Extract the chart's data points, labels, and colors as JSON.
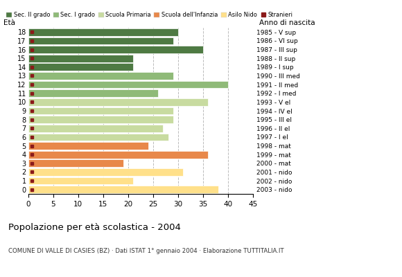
{
  "title": "Popolazione per età scolastica - 2004",
  "subtitle": "COMUNE DI VALLE DI CASIES (BZ) · Dati ISTAT 1° gennaio 2004 · Elaborazione TUTTITALIA.IT",
  "label_eta": "Età",
  "label_anno": "Anno di nascita",
  "ages": [
    0,
    1,
    2,
    3,
    4,
    5,
    6,
    7,
    8,
    9,
    10,
    11,
    12,
    13,
    14,
    15,
    16,
    17,
    18
  ],
  "year_labels": [
    "2003 - nido",
    "2002 - nido",
    "2001 - nido",
    "2000 - mat",
    "1999 - mat",
    "1998 - mat",
    "1997 - I el",
    "1996 - II el",
    "1995 - III el",
    "1994 - IV el",
    "1993 - V el",
    "1992 - I med",
    "1991 - II med",
    "1990 - III med",
    "1989 - I sup",
    "1988 - II sup",
    "1987 - III sup",
    "1986 - VI sup",
    "1985 - V sup"
  ],
  "bar_values": [
    38,
    21,
    31,
    19,
    36,
    24,
    28,
    27,
    29,
    29,
    36,
    26,
    40,
    29,
    21,
    21,
    35,
    29,
    30
  ],
  "foreigners": [
    1,
    1,
    1,
    2,
    1,
    2,
    1,
    2,
    1,
    1,
    1,
    2,
    2,
    1,
    1,
    1,
    1,
    1,
    1
  ],
  "bar_colors": [
    "#FFE08A",
    "#FFE08A",
    "#FFE08A",
    "#E8884A",
    "#E8884A",
    "#E8884A",
    "#C8DBA0",
    "#C8DBA0",
    "#C8DBA0",
    "#C8DBA0",
    "#C8DBA0",
    "#8FBA78",
    "#8FBA78",
    "#8FBA78",
    "#4E7A43",
    "#4E7A43",
    "#4E7A43",
    "#4E7A43",
    "#4E7A43"
  ],
  "legend_labels": [
    "Sec. II grado",
    "Sec. I grado",
    "Scuola Primaria",
    "Scuola dell'Infanzia",
    "Asilo Nido",
    "Stranieri"
  ],
  "legend_colors": [
    "#4E7A43",
    "#8FBA78",
    "#C8DBA0",
    "#E8884A",
    "#FFE08A",
    "#8B1A1A"
  ],
  "xlim": [
    0,
    45
  ],
  "xticks": [
    0,
    5,
    10,
    15,
    20,
    25,
    30,
    35,
    40,
    45
  ],
  "bg_color": "#FFFFFF",
  "grid_color": "#BBBBBB",
  "foreigner_color": "#8B1A1A"
}
